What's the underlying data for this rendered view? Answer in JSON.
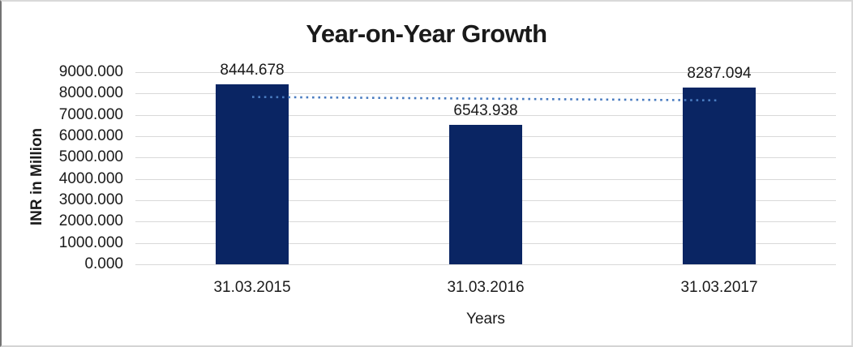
{
  "chart_data": {
    "type": "bar",
    "title": "Year-on-Year Growth",
    "xlabel": "Years",
    "ylabel": "INR in Million",
    "categories": [
      "31.03.2015",
      "31.03.2016",
      "31.03.2017"
    ],
    "values": [
      8444.678,
      6543.938,
      8287.094
    ],
    "data_labels": [
      "8444.678",
      "6543.938",
      "8287.094"
    ],
    "y_ticks": [
      "9000.000",
      "8000.000",
      "7000.000",
      "6000.000",
      "5000.000",
      "4000.000",
      "3000.000",
      "2000.000",
      "1000.000",
      "0.000"
    ],
    "ylim": [
      0,
      9000
    ],
    "grid": true,
    "legend": "none",
    "trendline": {
      "kind": "linear",
      "style": "dotted",
      "color": "#4a7cc0"
    },
    "colors": {
      "bar": "#0a2563",
      "gridline": "#d9d9d9",
      "text": "#1a1a1a"
    }
  }
}
